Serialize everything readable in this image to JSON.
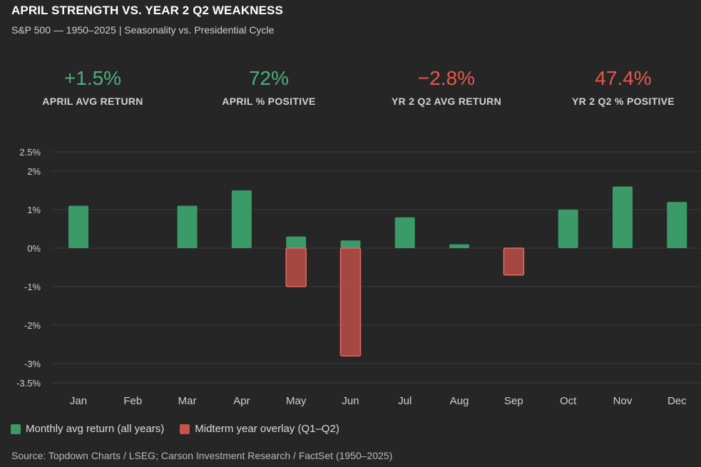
{
  "header": {
    "title": "APRIL STRENGTH VS. YEAR 2 Q2 WEAKNESS",
    "subtitle": "S&P 500 — 1950–2025 | Seasonality vs. Presidential Cycle"
  },
  "kpis": [
    {
      "value": "+1.5%",
      "label": "APRIL AVG RETURN",
      "tone": "pos"
    },
    {
      "value": "72%",
      "label": "APRIL % POSITIVE",
      "tone": "pos"
    },
    {
      "value": "−2.8%",
      "label": "YR 2 Q2 AVG RETURN",
      "tone": "neg"
    },
    {
      "value": "47.4%",
      "label": "YR 2 Q2 % POSITIVE",
      "tone": "neg"
    }
  ],
  "colors": {
    "positive": "#3a9a68",
    "positive_text": "#4caf7d",
    "negative": "#c9514a",
    "negative_text": "#e5584c",
    "grid": "#3a3a3a",
    "background": "#262626"
  },
  "chart_data": {
    "type": "bar",
    "title": "",
    "xlabel": "",
    "ylabel": "",
    "ylim": [
      -3.5,
      2.5
    ],
    "yticks": [
      2.5,
      2,
      1,
      0,
      -1,
      -2,
      -3,
      -3.5
    ],
    "ytick_labels": [
      "2.5%",
      "2%",
      "1%",
      "0%",
      "-1%",
      "-2%",
      "-3%",
      "-3.5%"
    ],
    "categories": [
      "Jan",
      "Feb",
      "Mar",
      "Apr",
      "May",
      "Jun",
      "Jul",
      "Aug",
      "Sep",
      "Oct",
      "Nov",
      "Dec"
    ],
    "series": [
      {
        "name": "Monthly avg return (all years)",
        "color": "#3a9a68",
        "values": [
          1.1,
          null,
          1.1,
          1.5,
          0.3,
          0.2,
          0.8,
          0.1,
          null,
          1.0,
          1.6,
          1.2
        ]
      },
      {
        "name": "Midterm year overlay (Q1–Q2)",
        "color": "#c9514a",
        "values": [
          null,
          null,
          null,
          null,
          -1.0,
          -2.8,
          null,
          null,
          -0.7,
          null,
          null,
          null
        ]
      }
    ],
    "legend_position": "bottom-left"
  },
  "legend": {
    "items": [
      "Monthly avg return (all years)",
      "Midterm year overlay (Q1–Q2)"
    ]
  },
  "footer": {
    "source": "Source: Topdown Charts / LSEG; Carson Investment Research / FactSet (1950–2025)"
  }
}
